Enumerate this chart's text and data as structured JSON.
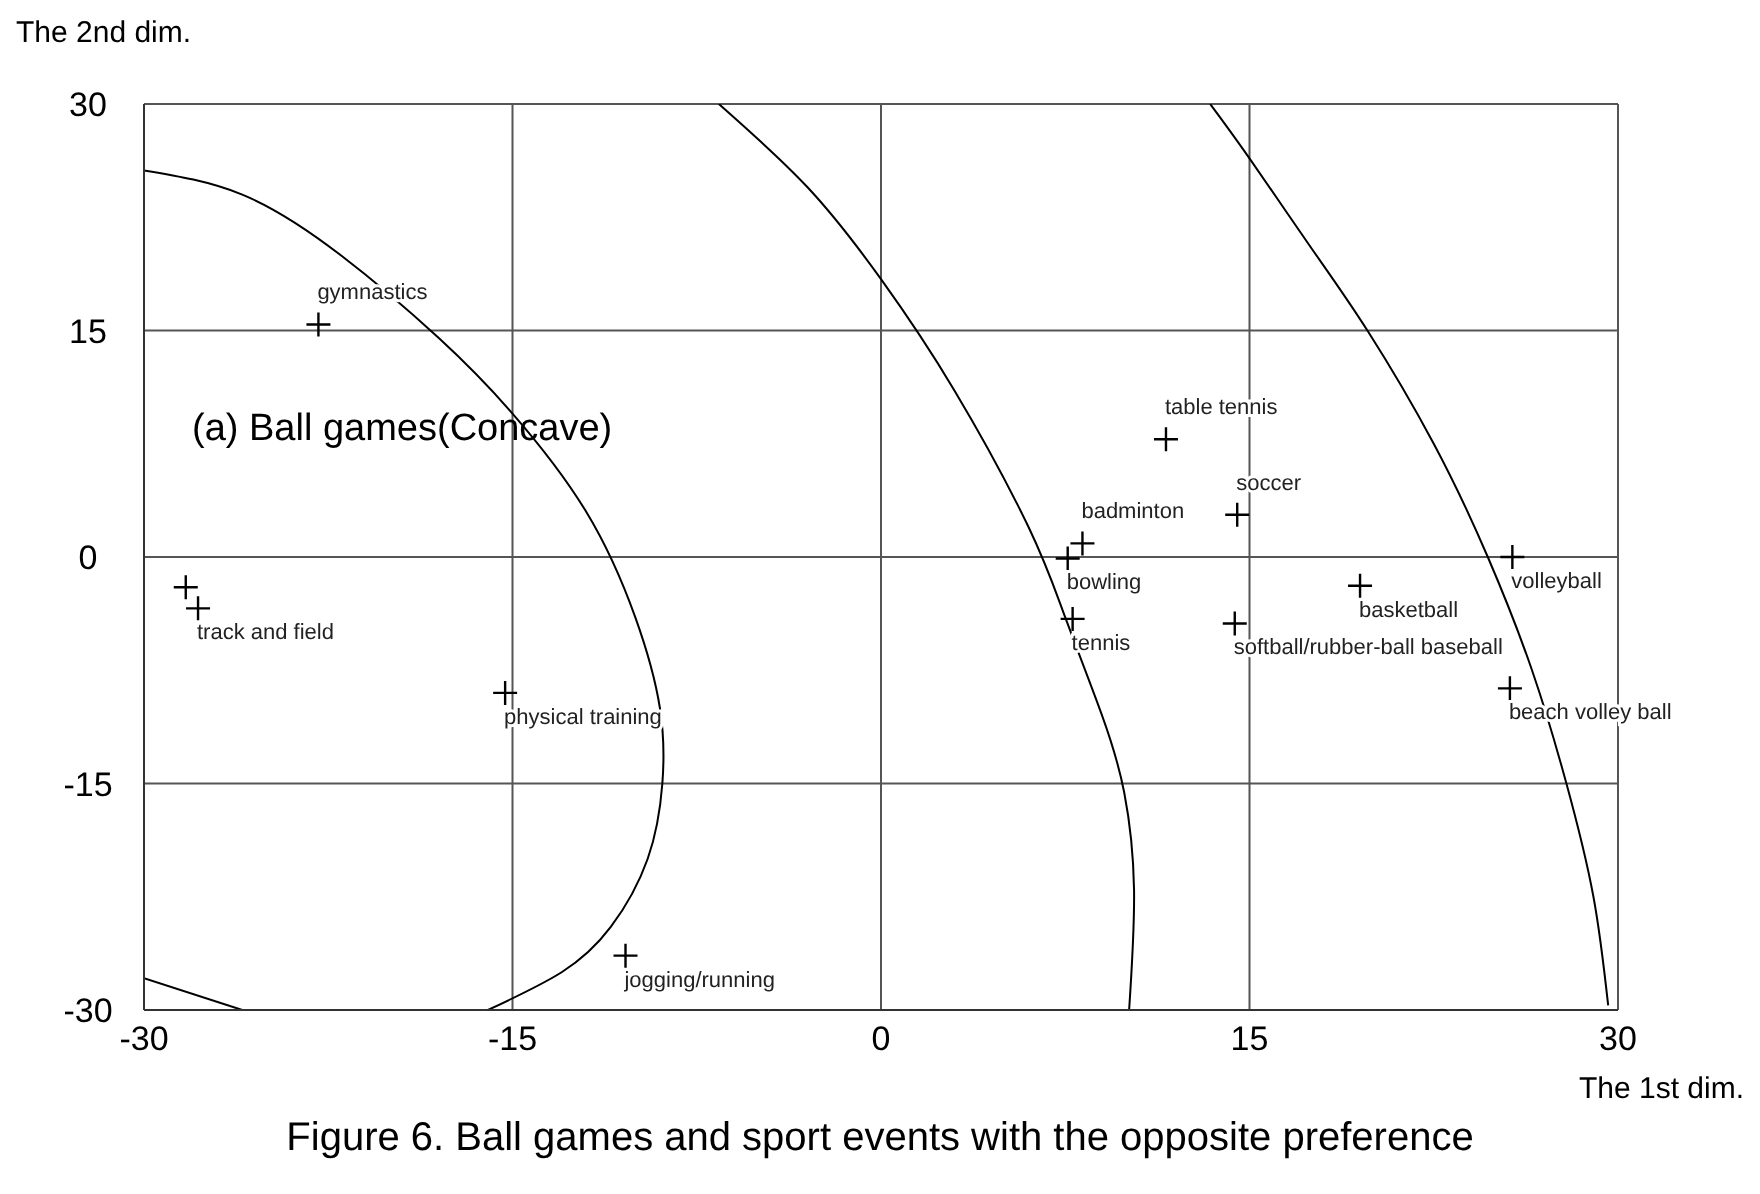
{
  "chart_data": {
    "type": "scatter",
    "title": "Figure 6. Ball games and sport events with the opposite preference",
    "xlabel": "The 1st dim.",
    "ylabel": "The 2nd dim.",
    "annotations": [
      "(a) Ball games(Concave)"
    ],
    "xlim": [
      -30,
      30
    ],
    "ylim": [
      -30,
      30
    ],
    "xticks": [
      -30,
      -15,
      0,
      15,
      30
    ],
    "yticks": [
      -30,
      -15,
      0,
      15,
      30
    ],
    "grid": true,
    "marker": "cross",
    "series": [
      {
        "name": "gymnastics",
        "color": "#000000",
        "x": [
          -22.9
        ],
        "values": [
          15.4
        ]
      },
      {
        "color": "#000000",
        "x": [
          -28.3
        ],
        "values": [
          -2.0
        ]
      },
      {
        "name": "track and field",
        "color": "#000000",
        "x": [
          -27.8
        ],
        "values": [
          -3.4
        ]
      },
      {
        "name": "physical training",
        "color": "#000000",
        "x": [
          -15.3
        ],
        "values": [
          -9.0
        ]
      },
      {
        "name": "jogging/running",
        "color": "#000000",
        "x": [
          -10.4
        ],
        "values": [
          -26.4
        ]
      },
      {
        "name": "table tennis",
        "color": "#000000",
        "x": [
          11.6
        ],
        "values": [
          7.8
        ]
      },
      {
        "name": "soccer",
        "color": "#000000",
        "x": [
          14.5
        ],
        "values": [
          2.8
        ]
      },
      {
        "name": "badminton",
        "color": "#000000",
        "x": [
          8.2
        ],
        "values": [
          0.9
        ]
      },
      {
        "name": "bowling",
        "color": "#000000",
        "x": [
          7.6
        ],
        "values": [
          -0.1
        ]
      },
      {
        "name": "tennis",
        "color": "#000000",
        "x": [
          7.8
        ],
        "values": [
          -4.1
        ]
      },
      {
        "name": "softball/rubber-ball baseball",
        "color": "#000000",
        "x": [
          14.4
        ],
        "values": [
          -4.4
        ]
      },
      {
        "name": "basketball",
        "color": "#000000",
        "x": [
          19.5
        ],
        "values": [
          -1.9
        ]
      },
      {
        "name": "volleyball",
        "color": "#000000",
        "x": [
          25.7
        ],
        "values": [
          0
        ]
      },
      {
        "name": "beach volley ball",
        "color": "#000000",
        "x": [
          25.6
        ],
        "values": [
          -8.7
        ]
      },
      {
        "type": "line",
        "color": "#000000",
        "marker": "none",
        "x": [
          -30,
          -26,
          -22,
          -18,
          -15,
          -12,
          -10,
          -9,
          -8.9,
          -9.5,
          -11,
          -13,
          -16
        ],
        "values": [
          25.6,
          24,
          20,
          14.5,
          9.5,
          3,
          -4,
          -10,
          -15,
          -20,
          -24.5,
          -27.5,
          -30
        ]
      },
      {
        "type": "line",
        "color": "#000000",
        "marker": "none",
        "x": [
          -30,
          -26
        ],
        "values": [
          -27.9,
          -30
        ]
      },
      {
        "type": "line",
        "color": "#000000",
        "marker": "none",
        "x": [
          -6.6,
          -3,
          0,
          3,
          6,
          7.5,
          9,
          9.9,
          10.3,
          10.1
        ],
        "values": [
          30,
          24.5,
          18.4,
          11,
          2,
          -4,
          -10.5,
          -15.6,
          -22,
          -30
        ]
      },
      {
        "type": "line",
        "color": "#000000",
        "marker": "none",
        "x": [
          13.4,
          15,
          17.5,
          19.8,
          22.5,
          24.7,
          26.5,
          27.9,
          29,
          29.6
        ],
        "values": [
          30,
          26.4,
          20.5,
          15,
          7.5,
          0,
          -7.5,
          -15,
          -22.5,
          -29.7
        ]
      }
    ]
  }
}
